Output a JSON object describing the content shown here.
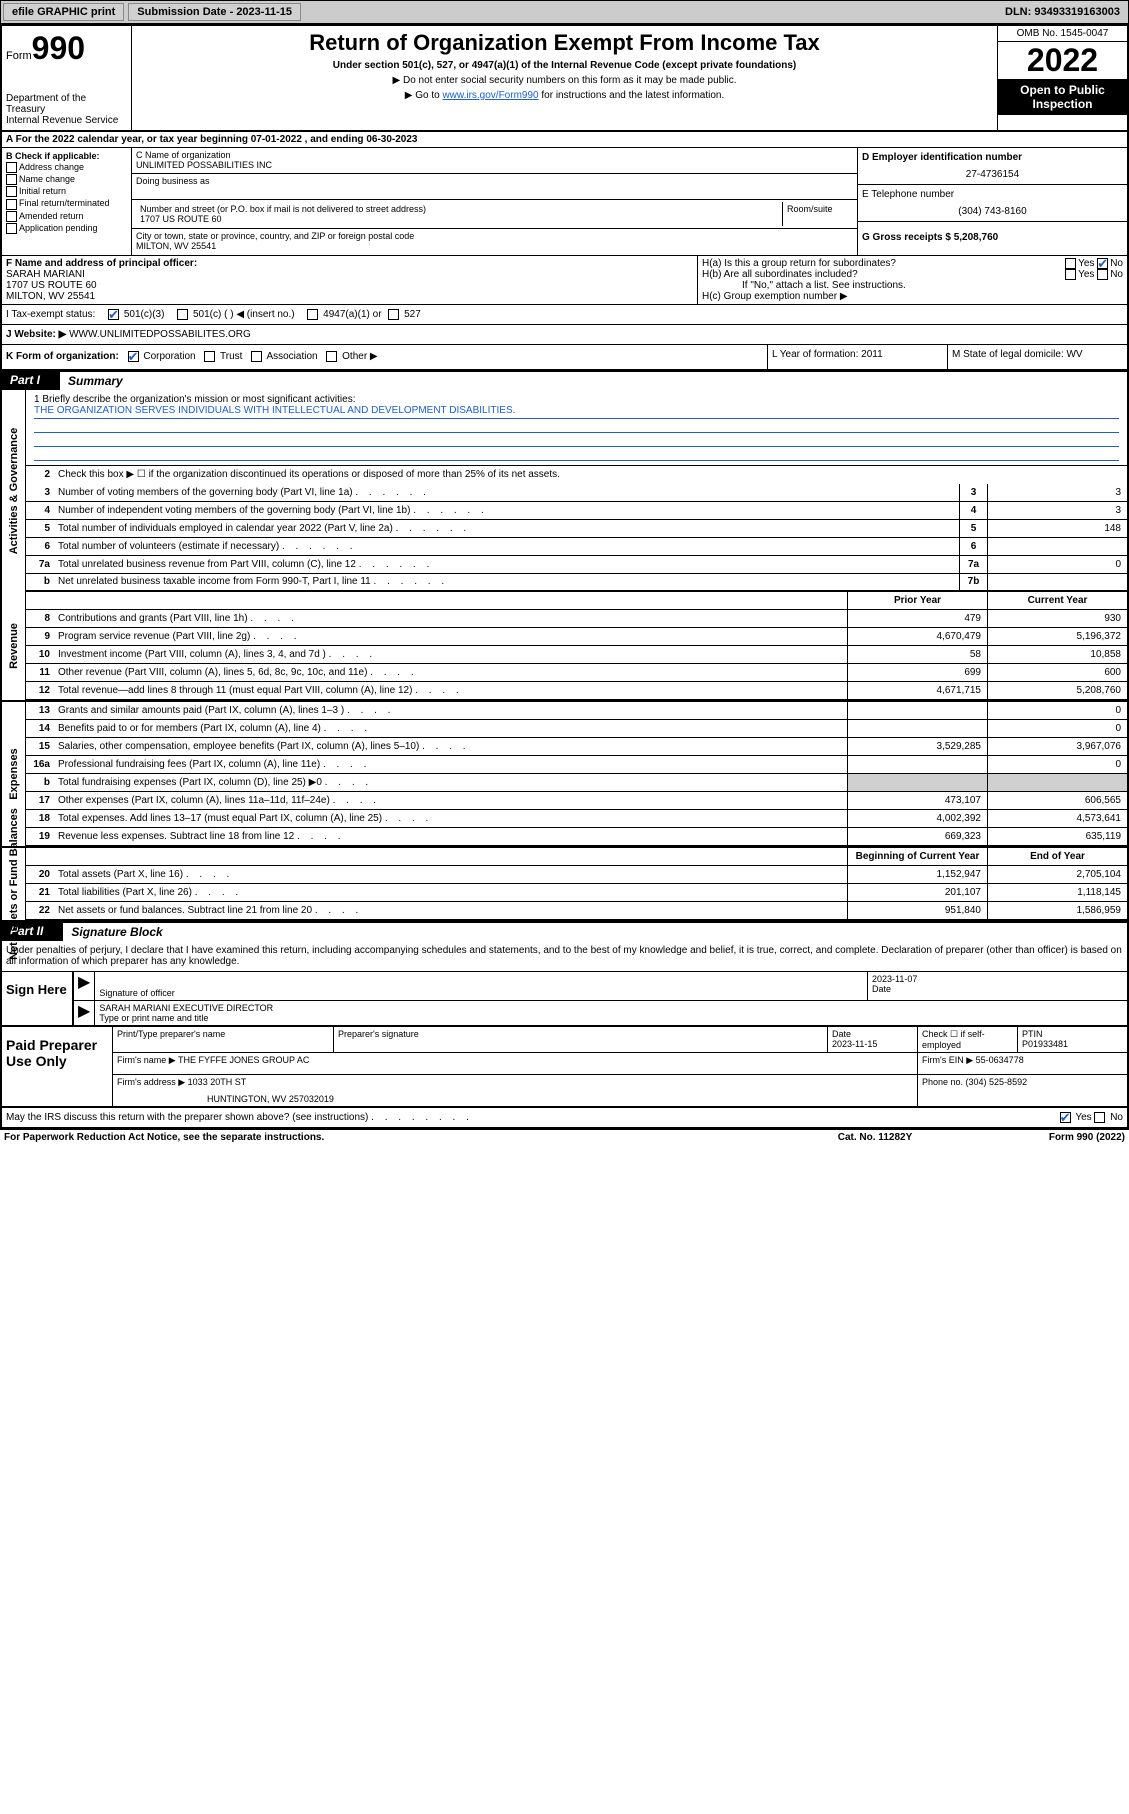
{
  "topbar": {
    "efile": "efile GRAPHIC print",
    "submission_label": "Submission Date - 2023-11-15",
    "dln": "DLN: 93493319163003"
  },
  "header": {
    "form_word": "Form",
    "form_num": "990",
    "dept": "Department of the Treasury",
    "irs": "Internal Revenue Service",
    "title": "Return of Organization Exempt From Income Tax",
    "sub": "Under section 501(c), 527, or 4947(a)(1) of the Internal Revenue Code (except private foundations)",
    "note1": "▶ Do not enter social security numbers on this form as it may be made public.",
    "note2_pre": "▶ Go to ",
    "note2_link": "www.irs.gov/Form990",
    "note2_post": " for instructions and the latest information.",
    "omb": "OMB No. 1545-0047",
    "year": "2022",
    "open": "Open to Public Inspection"
  },
  "rowA": "A For the 2022 calendar year, or tax year beginning 07-01-2022   , and ending 06-30-2023",
  "colB": {
    "hdr": "B Check if applicable:",
    "items": [
      "Address change",
      "Name change",
      "Initial return",
      "Final return/terminated",
      "Amended return",
      "Application pending"
    ]
  },
  "colC": {
    "name_lbl": "C Name of organization",
    "name": "UNLIMITED POSSABILITIES INC",
    "dba_lbl": "Doing business as",
    "addr_lbl": "Number and street (or P.O. box if mail is not delivered to street address)",
    "room_lbl": "Room/suite",
    "addr": "1707 US ROUTE 60",
    "city_lbl": "City or town, state or province, country, and ZIP or foreign postal code",
    "city": "MILTON, WV  25541"
  },
  "colDE": {
    "d_lbl": "D Employer identification number",
    "d_val": "27-4736154",
    "e_lbl": "E Telephone number",
    "e_val": "(304) 743-8160",
    "g_lbl": "G Gross receipts $ 5,208,760"
  },
  "rowF": {
    "lbl": "F Name and address of principal officer:",
    "name": "SARAH MARIANI",
    "addr1": "1707 US ROUTE 60",
    "addr2": "MILTON, WV  25541"
  },
  "rowH": {
    "ha": "H(a)  Is this a group return for subordinates?",
    "hb": "H(b)  Are all subordinates included?",
    "hb_note": "If \"No,\" attach a list. See instructions.",
    "hc": "H(c)  Group exemption number ▶"
  },
  "rowI": {
    "lbl": "I   Tax-exempt status:",
    "opts": [
      "501(c)(3)",
      "501(c) (  ) ◀ (insert no.)",
      "4947(a)(1) or",
      "527"
    ]
  },
  "rowJ": {
    "lbl": "J   Website: ▶ ",
    "val": "WWW.UNLIMITEDPOSSABILITES.ORG"
  },
  "rowK": {
    "lbl": "K Form of organization:",
    "opts": [
      "Corporation",
      "Trust",
      "Association",
      "Other ▶"
    ],
    "l_lbl": "L Year of formation: 2011",
    "m_lbl": "M State of legal domicile: WV"
  },
  "part1": {
    "num": "Part I",
    "title": "Summary"
  },
  "sections": {
    "gov": "Activities & Governance",
    "rev": "Revenue",
    "exp": "Expenses",
    "net": "Net Assets or Fund Balances"
  },
  "mission": {
    "lbl": "1   Briefly describe the organization's mission or most significant activities:",
    "text": "THE ORGANIZATION SERVES INDIVIDUALS WITH INTELLECTUAL AND DEVELOPMENT DISABILITIES."
  },
  "line2": "Check this box ▶ ☐  if the organization discontinued its operations or disposed of more than 25% of its net assets.",
  "gov_lines": [
    {
      "n": "3",
      "d": "Number of voting members of the governing body (Part VI, line 1a)",
      "box": "3",
      "v": "3"
    },
    {
      "n": "4",
      "d": "Number of independent voting members of the governing body (Part VI, line 1b)",
      "box": "4",
      "v": "3"
    },
    {
      "n": "5",
      "d": "Total number of individuals employed in calendar year 2022 (Part V, line 2a)",
      "box": "5",
      "v": "148"
    },
    {
      "n": "6",
      "d": "Total number of volunteers (estimate if necessary)",
      "box": "6",
      "v": ""
    },
    {
      "n": "7a",
      "d": "Total unrelated business revenue from Part VIII, column (C), line 12",
      "box": "7a",
      "v": "0"
    },
    {
      "n": "b",
      "d": "Net unrelated business taxable income from Form 990-T, Part I, line 11",
      "box": "7b",
      "v": ""
    }
  ],
  "col_hdrs": {
    "prior": "Prior Year",
    "current": "Current Year",
    "beg": "Beginning of Current Year",
    "end": "End of Year"
  },
  "rev_lines": [
    {
      "n": "8",
      "d": "Contributions and grants (Part VIII, line 1h)",
      "p": "479",
      "c": "930"
    },
    {
      "n": "9",
      "d": "Program service revenue (Part VIII, line 2g)",
      "p": "4,670,479",
      "c": "5,196,372"
    },
    {
      "n": "10",
      "d": "Investment income (Part VIII, column (A), lines 3, 4, and 7d )",
      "p": "58",
      "c": "10,858"
    },
    {
      "n": "11",
      "d": "Other revenue (Part VIII, column (A), lines 5, 6d, 8c, 9c, 10c, and 11e)",
      "p": "699",
      "c": "600"
    },
    {
      "n": "12",
      "d": "Total revenue—add lines 8 through 11 (must equal Part VIII, column (A), line 12)",
      "p": "4,671,715",
      "c": "5,208,760"
    }
  ],
  "exp_lines": [
    {
      "n": "13",
      "d": "Grants and similar amounts paid (Part IX, column (A), lines 1–3 )",
      "p": "",
      "c": "0"
    },
    {
      "n": "14",
      "d": "Benefits paid to or for members (Part IX, column (A), line 4)",
      "p": "",
      "c": "0"
    },
    {
      "n": "15",
      "d": "Salaries, other compensation, employee benefits (Part IX, column (A), lines 5–10)",
      "p": "3,529,285",
      "c": "3,967,076"
    },
    {
      "n": "16a",
      "d": "Professional fundraising fees (Part IX, column (A), line 11e)",
      "p": "",
      "c": "0"
    },
    {
      "n": "b",
      "d": "Total fundraising expenses (Part IX, column (D), line 25) ▶0",
      "p": "shade",
      "c": "shade"
    },
    {
      "n": "17",
      "d": "Other expenses (Part IX, column (A), lines 11a–11d, 11f–24e)",
      "p": "473,107",
      "c": "606,565"
    },
    {
      "n": "18",
      "d": "Total expenses. Add lines 13–17 (must equal Part IX, column (A), line 25)",
      "p": "4,002,392",
      "c": "4,573,641"
    },
    {
      "n": "19",
      "d": "Revenue less expenses. Subtract line 18 from line 12",
      "p": "669,323",
      "c": "635,119"
    }
  ],
  "net_lines": [
    {
      "n": "20",
      "d": "Total assets (Part X, line 16)",
      "p": "1,152,947",
      "c": "2,705,104"
    },
    {
      "n": "21",
      "d": "Total liabilities (Part X, line 26)",
      "p": "201,107",
      "c": "1,118,145"
    },
    {
      "n": "22",
      "d": "Net assets or fund balances. Subtract line 21 from line 20",
      "p": "951,840",
      "c": "1,586,959"
    }
  ],
  "part2": {
    "num": "Part II",
    "title": "Signature Block"
  },
  "sig_intro": "Under penalties of perjury, I declare that I have examined this return, including accompanying schedules and statements, and to the best of my knowledge and belief, it is true, correct, and complete. Declaration of preparer (other than officer) is based on all information of which preparer has any knowledge.",
  "sign": {
    "here": "Sign Here",
    "sig_lbl": "Signature of officer",
    "date_lbl": "Date",
    "date": "2023-11-07",
    "name": "SARAH MARIANI  EXECUTIVE DIRECTOR",
    "name_lbl": "Type or print name and title"
  },
  "prep": {
    "left": "Paid Preparer Use Only",
    "h1": "Print/Type preparer's name",
    "h2": "Preparer's signature",
    "h3": "Date",
    "h3v": "2023-11-15",
    "h4": "Check ☐ if self-employed",
    "h5": "PTIN",
    "h5v": "P01933481",
    "firm_lbl": "Firm's name    ▶",
    "firm": "THE FYFFE JONES GROUP AC",
    "ein_lbl": "Firm's EIN ▶",
    "ein": "55-0634778",
    "addr_lbl": "Firm's address ▶",
    "addr1": "1033 20TH ST",
    "addr2": "HUNTINGTON, WV  257032019",
    "phone_lbl": "Phone no. (304) 525-8592"
  },
  "footer": {
    "q": "May the IRS discuss this return with the preparer shown above? (see instructions)",
    "yes": "Yes",
    "no": "No",
    "pra": "For Paperwork Reduction Act Notice, see the separate instructions.",
    "cat": "Cat. No. 11282Y",
    "form": "Form 990 (2022)"
  }
}
